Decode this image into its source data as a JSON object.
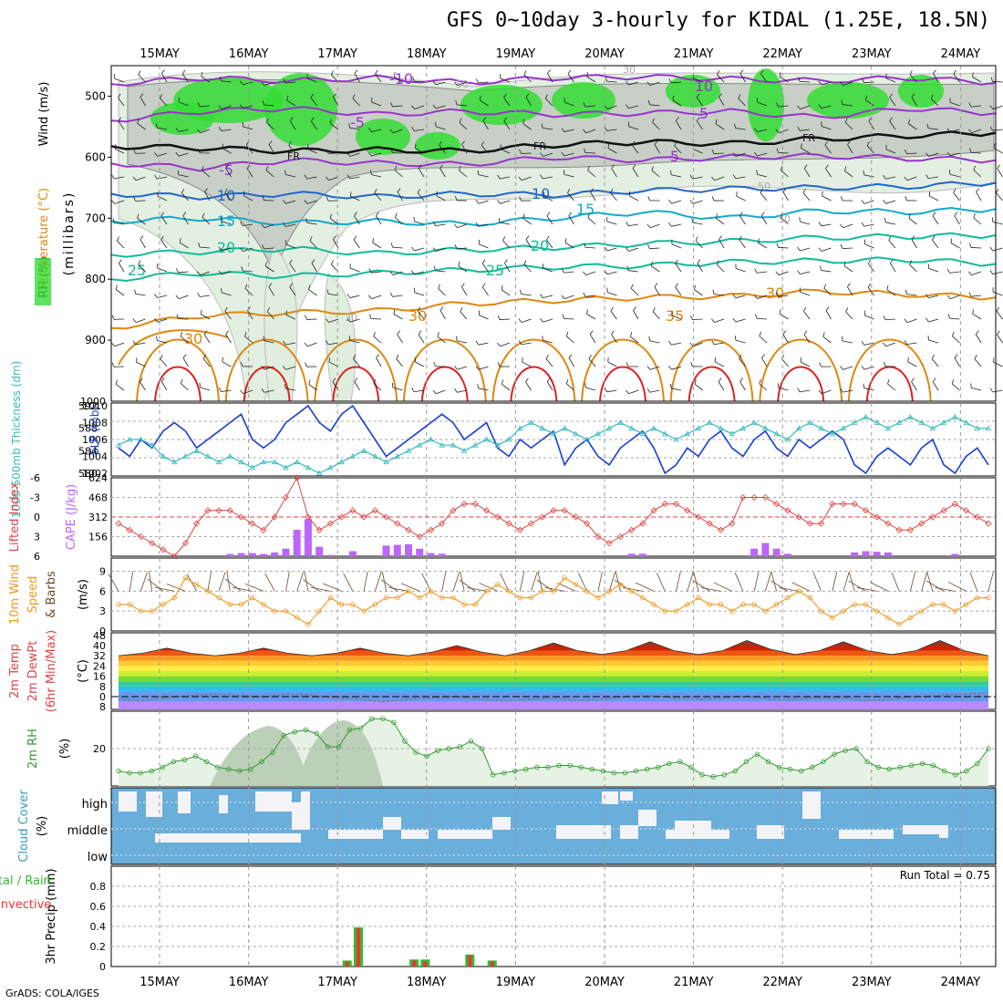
{
  "title": "GFS 0~10day 3-hourly for KIDAL (1.25E, 18.5N)",
  "footer": "GrADS: COLA/IGES",
  "run_total_label": "Run Total = 0.75",
  "colors": {
    "rh_green": "#33dd33",
    "rh_gray": "#bbbbbb",
    "temp_purple": "#9933cc",
    "temp_blue": "#2266cc",
    "temp_cyan": "#11aacc",
    "temp_teal": "#11bb99",
    "temp_orange": "#dd8811",
    "temp_red": "#dd2222",
    "slp_blue": "#1a3fd0",
    "thickness_cyan": "#33bbbb",
    "lifted_red": "#dd4444",
    "cape_purple": "#bb66ff",
    "wind_orange": "#ee9922",
    "rh2m_green": "#339933",
    "cloud_blue": "#6aaedb",
    "precip_green": "#33bb33",
    "precip_red": "#ee3333"
  },
  "chart_data": {
    "type": "meteogram",
    "days": [
      "15MAY",
      "16MAY",
      "17MAY",
      "18MAY",
      "19MAY",
      "20MAY",
      "21MAY",
      "22MAY",
      "23MAY",
      "24MAY"
    ],
    "panels": [
      {
        "id": "upper_air",
        "type": "contour",
        "ylabel": "(millibars)",
        "legend": [
          "RH (%)",
          "Temperature (°C)",
          "Wind (m/s)"
        ],
        "y_ticks": [
          500,
          600,
          700,
          800,
          900
        ],
        "ylim": [
          1000,
          450
        ],
        "temperature_contours": [
          {
            "label": "-10",
            "p": [
              480,
              470,
              475,
              470,
              478,
              470,
              468,
              472,
              475,
              470,
              478
            ],
            "color_key": "temp_purple"
          },
          {
            "label": "-5",
            "p": [
              540,
              525,
              520,
              530,
              525,
              530,
              528,
              525,
              535,
              520,
              528
            ],
            "color_key": "temp_purple"
          },
          {
            "label": "FR",
            "p": [
              582,
              585,
              590,
              588,
              590,
              580,
              575,
              578,
              570,
              565,
              560
            ],
            "color_key": "fr_black"
          },
          {
            "label": "-5",
            "p": [
              610,
              618,
              605,
              610,
              612,
              600,
              605,
              600,
              598,
              602,
              605
            ],
            "color_key": "temp_purple"
          },
          {
            "label": "10",
            "p": [
              660,
              665,
              660,
              665,
              660,
              662,
              655,
              652,
              650,
              648,
              642
            ],
            "color_key": "temp_blue"
          },
          {
            "label": "15",
            "p": [
              705,
              700,
              708,
              705,
              710,
              700,
              690,
              700,
              688,
              690,
              685
            ],
            "color_key": "temp_cyan"
          },
          {
            "label": "20",
            "p": [
              760,
              755,
              750,
              758,
              752,
              748,
              742,
              738,
              732,
              730,
              728
            ],
            "color_key": "temp_teal"
          },
          {
            "label": "25",
            "p": [
              800,
              790,
              795,
              790,
              785,
              780,
              778,
              772,
              770,
              768,
              775
            ],
            "color_key": "temp_teal"
          },
          {
            "label": "30",
            "p": [
              880,
              860,
              855,
              852,
              840,
              835,
              830,
              828,
              820,
              825,
              830
            ],
            "color_key": "temp_orange"
          }
        ],
        "contour_labels": [
          "-10",
          "-5",
          "FR",
          "-5",
          "10",
          "15",
          "20",
          "25",
          "30",
          "35",
          "30",
          "10",
          "5",
          "5",
          "10",
          "15",
          "20",
          "25",
          "30",
          "30",
          "50",
          "50",
          "30",
          "30",
          "30"
        ]
      },
      {
        "id": "slp_thickness",
        "type": "line",
        "ylabel_left": "1000-500mb Thickness (dm)",
        "ylabel_right": "SLP (mb)",
        "left_ticks": [
          580,
          584,
          588,
          592
        ],
        "right_ticks": [
          1002,
          1004,
          1006,
          1008,
          1010
        ],
        "slp": [
          1005,
          1004,
          1006,
          1005,
          1007,
          1008,
          1007,
          1005,
          1006,
          1007,
          1008,
          1009,
          1006,
          1005,
          1006,
          1008,
          1009,
          1010,
          1008,
          1007,
          1009,
          1010,
          1008,
          1006,
          1004,
          1005,
          1006,
          1007,
          1008,
          1009,
          1008,
          1006,
          1007,
          1008,
          1005,
          1004,
          1006,
          1005,
          1006,
          1007,
          1003,
          1005,
          1006,
          1004,
          1003,
          1005,
          1006,
          1007,
          1005,
          1002,
          1003,
          1005,
          1004,
          1006,
          1007,
          1005,
          1004,
          1006,
          1007,
          1005,
          1004,
          1006,
          1005,
          1006,
          1007,
          1006,
          1003,
          1002,
          1004,
          1005,
          1004,
          1003,
          1005,
          1006,
          1003,
          1002,
          1004,
          1005,
          1003
        ],
        "thickness": [
          585,
          586,
          586,
          585,
          583,
          582,
          583,
          584,
          583,
          582,
          583,
          582,
          581,
          582,
          582,
          581,
          582,
          581,
          580,
          581,
          582,
          583,
          584,
          583,
          582,
          583,
          584,
          585,
          586,
          585,
          585,
          584,
          585,
          586,
          585,
          586,
          588,
          589,
          588,
          587,
          588,
          587,
          586,
          587,
          588,
          589,
          588,
          587,
          588,
          587,
          586,
          587,
          588,
          589,
          588,
          587,
          588,
          589,
          588,
          587,
          586,
          588,
          589,
          588,
          587,
          588,
          589,
          590,
          589,
          588,
          589,
          590,
          589,
          588,
          589,
          590,
          589,
          588,
          588
        ]
      },
      {
        "id": "cape_li",
        "type": "bar+line",
        "ylabel_left": "Lifted Index",
        "ylabel_right": "CAPE (J/kg)",
        "left_ticks": [
          6,
          3,
          0,
          -3,
          -6
        ],
        "right_ticks": [
          156,
          312,
          468,
          624
        ],
        "lifted_index": [
          1,
          2,
          3,
          4,
          5,
          6,
          4,
          1,
          -1,
          -1,
          -1,
          0,
          1,
          2,
          0,
          -3,
          -6,
          0,
          2,
          1,
          0,
          -1,
          0,
          -1,
          0,
          1,
          2,
          3,
          2,
          1,
          -1,
          -2,
          -2,
          -1,
          0,
          1,
          2,
          1,
          0,
          -1,
          -1,
          0,
          1,
          3,
          4,
          3,
          2,
          1,
          -1,
          -2,
          -2,
          -1,
          0,
          1,
          2,
          1,
          -3,
          -3,
          -3,
          -2,
          -1,
          0,
          1,
          1,
          -2,
          -2,
          -2,
          -1,
          0,
          1,
          2,
          2,
          1,
          0,
          -1,
          -2,
          -1,
          0,
          1
        ],
        "cape": [
          0,
          0,
          0,
          0,
          0,
          0,
          0,
          0,
          0,
          0,
          18,
          25,
          25,
          18,
          30,
          60,
          210,
          295,
          75,
          10,
          0,
          40,
          0,
          0,
          85,
          90,
          95,
          60,
          25,
          20,
          0,
          0,
          0,
          0,
          0,
          0,
          0,
          0,
          0,
          0,
          0,
          0,
          0,
          0,
          0,
          0,
          20,
          20,
          0,
          0,
          0,
          0,
          0,
          0,
          0,
          0,
          0,
          60,
          105,
          60,
          20,
          0,
          0,
          0,
          0,
          0,
          30,
          40,
          35,
          30,
          0,
          0,
          0,
          0,
          0,
          18,
          0,
          0,
          0
        ]
      },
      {
        "id": "wind10m",
        "type": "line",
        "ylabel": "10m Wind Speed & Barbs (m/s)",
        "ticks": [
          0,
          3,
          6,
          9
        ],
        "speed": [
          4,
          4,
          3,
          3,
          4,
          5,
          8,
          7,
          6,
          5,
          4,
          4,
          5,
          4,
          3,
          3,
          2,
          1,
          3,
          5,
          4,
          4,
          3,
          4,
          5,
          5,
          6,
          5,
          6,
          5,
          5,
          4,
          4,
          6,
          7,
          6,
          5,
          5,
          6,
          6,
          8,
          7,
          6,
          5,
          6,
          7,
          6,
          5,
          4,
          3,
          3,
          4,
          5,
          4,
          4,
          3,
          4,
          4,
          3,
          4,
          5,
          6,
          5,
          3,
          2,
          3,
          4,
          4,
          3,
          2,
          1,
          2,
          3,
          4,
          4,
          3,
          4,
          5,
          5
        ]
      },
      {
        "id": "temp2m",
        "type": "area",
        "ylabel": "2m Temp, 2m DewPt (6hr Min/Max) (°C)",
        "ticks": [
          -8,
          0,
          8,
          16,
          24,
          32,
          40,
          48
        ],
        "tmax": [
          32,
          34,
          38,
          34,
          32,
          34,
          38,
          34,
          32,
          34,
          38,
          34,
          32,
          35,
          40,
          35,
          32,
          36,
          42,
          36,
          33,
          36,
          43,
          36,
          33,
          36,
          44,
          37,
          33,
          36,
          43,
          36,
          33,
          36,
          44,
          36,
          32
        ],
        "dewpt": [
          -2,
          -3,
          -1,
          1,
          2,
          1,
          0,
          2,
          1,
          -1,
          -2,
          -4,
          -2,
          -1,
          0,
          -2,
          -3,
          -2,
          -1,
          -3,
          -2,
          0,
          1,
          -1,
          -2,
          -1,
          0,
          -2,
          -2,
          -1,
          -1,
          -3,
          -2,
          0,
          1,
          2,
          3
        ]
      },
      {
        "id": "rh2m",
        "type": "area",
        "ylabel": "2m RH (%)",
        "ticks": [
          20
        ],
        "rh": [
          8,
          7,
          7,
          8,
          10,
          13,
          14,
          16,
          13,
          10,
          9,
          8,
          9,
          13,
          18,
          27,
          29,
          30,
          28,
          21,
          21,
          30,
          31,
          36,
          36,
          34,
          24,
          18,
          16,
          19,
          20,
          21,
          24,
          20,
          6,
          7,
          8,
          9,
          10,
          10,
          11,
          11,
          10,
          9,
          8,
          7,
          7,
          8,
          9,
          10,
          12,
          13,
          10,
          6,
          5,
          6,
          8,
          13,
          17,
          13,
          10,
          9,
          8,
          10,
          13,
          17,
          19,
          20,
          13,
          10,
          9,
          10,
          11,
          12,
          11,
          8,
          6,
          8,
          12,
          20
        ]
      },
      {
        "id": "cloud",
        "type": "heatmap",
        "ylabel": "Cloud Cover (%)",
        "levels": [
          "high",
          "middle",
          "low"
        ]
      },
      {
        "id": "precip",
        "type": "bar",
        "ylabel": "3hr Precip (mm)",
        "legend": [
          "Total / Rain",
          "Convective"
        ],
        "ticks": [
          0,
          0.2,
          0.4,
          0.6,
          0.8
        ],
        "ylim": [
          0,
          1.0
        ],
        "bars": [
          {
            "t": 20.5,
            "total": 0.06,
            "conv": 0.05
          },
          {
            "t": 21.5,
            "total": 0.39,
            "conv": 0.38
          },
          {
            "t": 26.5,
            "total": 0.07,
            "conv": 0.06
          },
          {
            "t": 27.5,
            "total": 0.07,
            "conv": 0.05
          },
          {
            "t": 31.5,
            "total": 0.12,
            "conv": 0.11
          },
          {
            "t": 33.5,
            "total": 0.06,
            "conv": 0.05
          }
        ]
      }
    ]
  }
}
